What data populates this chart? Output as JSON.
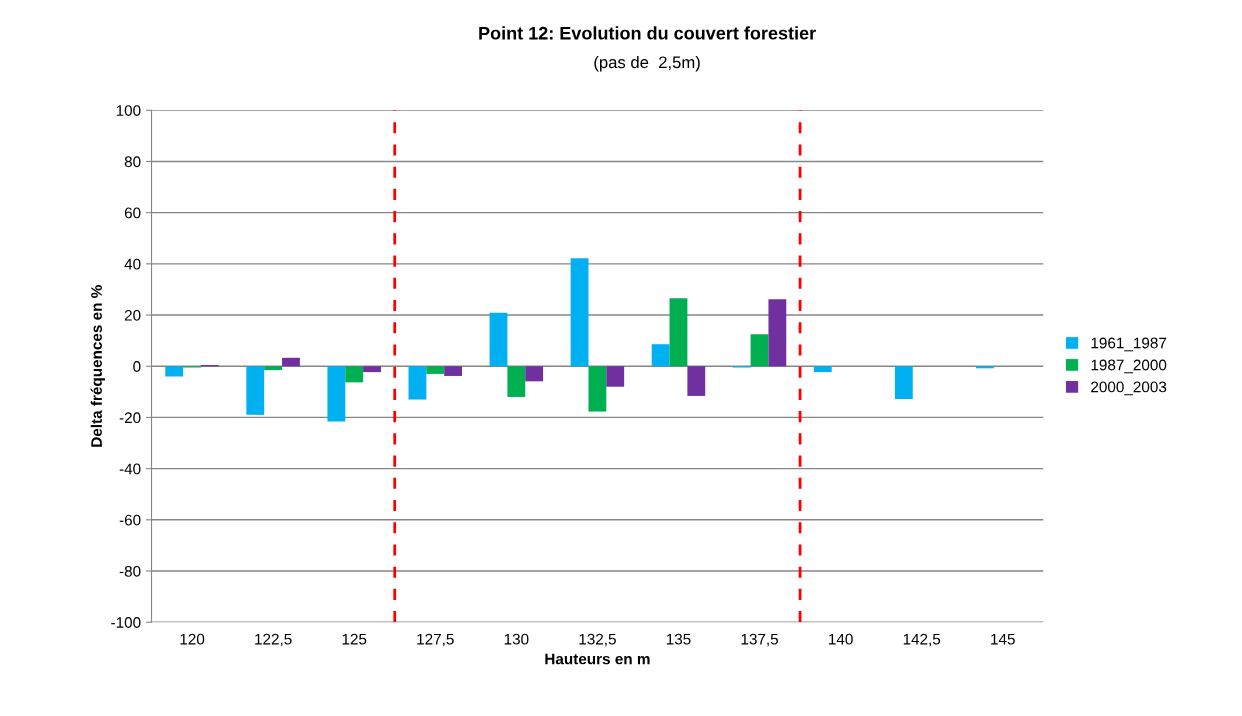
{
  "chart_data": {
    "type": "bar",
    "title": "Point 12: Evolution du couvert forestier",
    "subtitle": "(pas de  2,5m)",
    "xlabel": "Hauteurs en m",
    "ylabel": "Delta fréquences en %",
    "x": [
      120,
      122.5,
      125,
      127.5,
      130,
      132.5,
      135,
      137.5,
      140,
      142.5,
      145
    ],
    "xlim": [
      118.75,
      146.25
    ],
    "xticks": [
      120,
      {
        "value": 122.5,
        "label": "122,5"
      },
      125,
      {
        "value": 127.5,
        "label": "127,5"
      },
      130,
      {
        "value": 132.5,
        "label": "132,5"
      },
      135,
      {
        "value": 137.5,
        "label": "137,5"
      },
      140,
      {
        "value": 142.5,
        "label": "142,5"
      },
      145
    ],
    "ylim": [
      -100,
      100
    ],
    "yticks": [
      -100,
      -80,
      -60,
      -40,
      -20,
      0,
      20,
      40,
      60,
      80,
      100
    ],
    "series": [
      {
        "name": "1961_1987",
        "color": "#00b0f0",
        "values": [
          -4.0,
          -19.0,
          -21.6,
          -13.0,
          20.9,
          42.2,
          8.6,
          -0.5,
          -2.3,
          -12.8,
          -0.8
        ]
      },
      {
        "name": "1987_2000",
        "color": "#00b050",
        "values": [
          -0.5,
          -1.5,
          -6.3,
          -3.0,
          -12.0,
          -17.7,
          26.6,
          12.5,
          0,
          0,
          0
        ]
      },
      {
        "name": "2000_2003",
        "color": "#7030a0",
        "values": [
          0.5,
          3.3,
          -2.3,
          -3.8,
          -5.9,
          -8.0,
          -11.6,
          26.2,
          0,
          0,
          0
        ]
      }
    ],
    "ref_lines": [
      {
        "axis": "x",
        "value": 126.25,
        "color": "#ff0000",
        "line_style": "dashed"
      },
      {
        "axis": "x",
        "value": 138.75,
        "color": "#ff0000",
        "line_style": "dashed"
      }
    ],
    "grid": "y",
    "legend": "right"
  }
}
